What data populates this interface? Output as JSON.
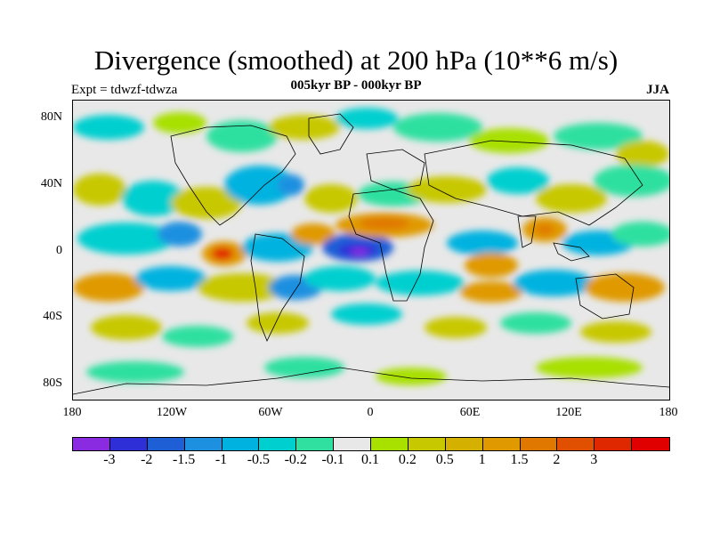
{
  "title": "Divergence (smoothed) at 200 hPa (10**6 m/s)",
  "subtitle": "005kyr BP - 000kyr BP",
  "experiment": "Expt = tdwzf-tdwza",
  "season": "JJA",
  "lat_ticks": [
    "80N",
    "40N",
    "0",
    "40S",
    "80S"
  ],
  "lon_ticks": [
    "180",
    "120W",
    "60W",
    "0",
    "60E",
    "120E",
    "180"
  ],
  "colorbar": {
    "colors": [
      "#8a2be2",
      "#2f2fd8",
      "#1e5fd6",
      "#1e90e0",
      "#00b2e0",
      "#00cfd0",
      "#2fe0a0",
      "#e8e8e8",
      "#a8e000",
      "#c8c800",
      "#d4b000",
      "#e09a00",
      "#e07800",
      "#e05000",
      "#e02800",
      "#e00000"
    ],
    "labels": [
      "-3",
      "-2",
      "-1.5",
      "-1",
      "-0.5",
      "-0.2",
      "-0.1",
      "0.1",
      "0.2",
      "0.5",
      "1",
      "1.5",
      "2",
      "3"
    ]
  }
}
